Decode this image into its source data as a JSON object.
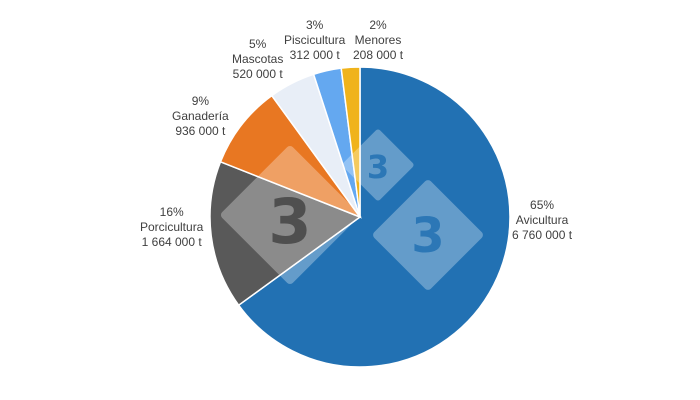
{
  "chart_data": {
    "type": "pie",
    "title": "",
    "unit": "t",
    "slices": [
      {
        "name": "Avicultura",
        "percent": "65%",
        "value": 6760000,
        "value_label": "6 760 000 t",
        "color": "#2271B3"
      },
      {
        "name": "Porcicultura",
        "percent": "16%",
        "value": 1664000,
        "value_label": "1 664 000 t",
        "color": "#595959"
      },
      {
        "name": "Ganadería",
        "percent": "9%",
        "value": 936000,
        "value_label": "936 000 t",
        "color": "#E87722"
      },
      {
        "name": "Mascotas",
        "percent": "5%",
        "value": 520000,
        "value_label": "520 000 t",
        "color": "#E8EEF7"
      },
      {
        "name": "Piscicultura",
        "percent": "3%",
        "value": 312000,
        "value_label": "312 000 t",
        "color": "#64A8F0"
      },
      {
        "name": "Menores",
        "percent": "2%",
        "value": 208000,
        "value_label": "208 000 t",
        "color": "#F0B31B"
      }
    ]
  }
}
